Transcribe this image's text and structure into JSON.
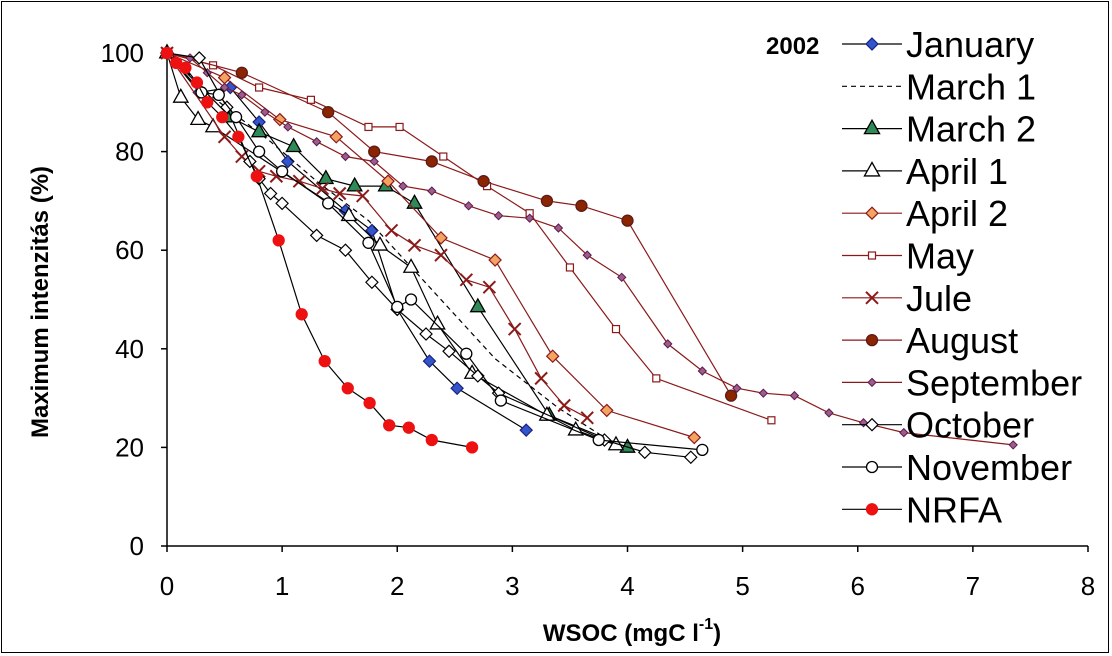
{
  "chart_data": {
    "type": "line",
    "year_label": "2002",
    "xlabel": "WSOC (mgC l",
    "xlabel_sup": "-1",
    "xlabel_close": ")",
    "ylabel": "Maximum intenzitás (%)",
    "xlim": [
      0,
      8
    ],
    "ylim": [
      0,
      100
    ],
    "x_ticks": [
      "0",
      "1",
      "2",
      "3",
      "4",
      "5",
      "6",
      "7",
      "8"
    ],
    "y_ticks": [
      "0",
      "20",
      "40",
      "60",
      "80",
      "100"
    ],
    "grid": false,
    "legend_position": "right",
    "series": [
      {
        "name": "January",
        "color": "#000000",
        "marker": "diamond",
        "marker_fill": "#3355cc",
        "marker_stroke": "#1a237e",
        "dash": false,
        "x": [
          0.0,
          0.28,
          0.55,
          0.8,
          1.05,
          1.55,
          1.78,
          2.0,
          2.28,
          2.52,
          3.12
        ],
        "y": [
          100,
          92,
          93,
          86,
          78,
          68,
          64,
          48,
          37.5,
          32,
          23.5
        ]
      },
      {
        "name": "March 1",
        "color": "#000000",
        "marker": "none",
        "dash": true,
        "x": [
          0.0,
          0.4,
          0.9,
          1.3,
          1.75,
          2.3,
          2.85,
          3.4,
          3.8
        ],
        "y": [
          100,
          91,
          82,
          74,
          66,
          52,
          38,
          28,
          22
        ]
      },
      {
        "name": "March 2",
        "color": "#000000",
        "marker": "triangle",
        "marker_fill": "#2e8b57",
        "marker_stroke": "#000000",
        "dash": false,
        "x": [
          0.0,
          0.55,
          0.8,
          1.1,
          1.38,
          1.63,
          1.9,
          2.15,
          2.7,
          3.32,
          4.0
        ],
        "y": [
          100,
          87,
          84,
          81,
          74.5,
          73,
          73,
          69.5,
          48.5,
          26.5,
          20
        ]
      },
      {
        "name": "April 1",
        "color": "#000000",
        "marker": "triangle",
        "marker_fill": "#ffffff",
        "marker_stroke": "#000000",
        "dash": false,
        "x": [
          0.0,
          0.12,
          0.27,
          0.4,
          1.58,
          1.85,
          2.12,
          2.35,
          2.65,
          3.3,
          3.55,
          3.9
        ],
        "y": [
          100,
          91,
          86.5,
          85,
          67,
          61,
          56.5,
          45,
          35,
          26.5,
          23.5,
          20.5
        ]
      },
      {
        "name": "April 2",
        "color": "#8b1a1a",
        "marker": "diamond",
        "marker_fill": "#f4a460",
        "marker_stroke": "#8b1a1a",
        "dash": false,
        "x": [
          0.0,
          0.5,
          0.98,
          1.47,
          1.92,
          2.38,
          2.85,
          3.35,
          3.82,
          4.58
        ],
        "y": [
          100,
          95,
          86.5,
          83,
          74,
          62.5,
          58,
          38.5,
          27.5,
          22
        ]
      },
      {
        "name": "May",
        "color": "#8b1a1a",
        "marker": "square",
        "marker_fill": "#ffffff",
        "marker_stroke": "#8b1a1a",
        "dash": false,
        "x": [
          0.0,
          0.4,
          0.8,
          1.25,
          1.75,
          2.02,
          2.4,
          2.78,
          3.15,
          3.5,
          3.9,
          4.25,
          5.25
        ],
        "y": [
          100,
          97.5,
          93,
          90.5,
          85,
          85,
          79,
          73,
          67.5,
          56.5,
          44,
          34,
          25.5
        ]
      },
      {
        "name": "Jule",
        "color": "#8b1a1a",
        "marker": "x",
        "marker_fill": "#8b1a1a",
        "marker_stroke": "#8b1a1a",
        "dash": false,
        "x": [
          0.0,
          0.5,
          0.65,
          0.8,
          0.95,
          1.15,
          1.35,
          1.5,
          1.7,
          1.95,
          2.15,
          2.38,
          2.6,
          2.8,
          3.02,
          3.25,
          3.45,
          3.65
        ],
        "y": [
          100,
          83,
          79,
          76,
          75,
          74,
          72.5,
          71.5,
          71,
          64,
          61,
          59,
          54,
          52.5,
          44,
          34,
          28.5,
          26
        ]
      },
      {
        "name": "August",
        "color": "#8b1a1a",
        "marker": "circle",
        "marker_fill": "#8b2500",
        "marker_stroke": "#5c1a1a",
        "dash": false,
        "x": [
          0.0,
          0.65,
          1.4,
          1.8,
          2.3,
          2.75,
          3.3,
          3.6,
          4.0,
          4.9
        ],
        "y": [
          100,
          96,
          88,
          80,
          78,
          74,
          70,
          69,
          66,
          30.5
        ]
      },
      {
        "name": "September",
        "color": "#8b1a1a",
        "marker": "diamond_small",
        "marker_fill": "#9c5c8c",
        "marker_stroke": "#5c1a4a",
        "dash": false,
        "x": [
          0.0,
          0.2,
          0.35,
          0.5,
          0.65,
          0.85,
          1.05,
          1.3,
          1.55,
          1.8,
          2.05,
          2.3,
          2.62,
          2.88,
          3.15,
          3.4,
          3.65,
          3.95,
          4.35,
          4.65,
          4.95,
          5.18,
          5.45,
          5.75,
          6.05,
          6.4,
          7.35
        ],
        "y": [
          100,
          99,
          96,
          93,
          91.5,
          88,
          85,
          82,
          79,
          78,
          73,
          72,
          69,
          67,
          66.5,
          64.5,
          59,
          54.5,
          41,
          35.5,
          32,
          31,
          30.5,
          27,
          25,
          23,
          20.5
        ]
      },
      {
        "name": "October",
        "color": "#000000",
        "marker": "diamond",
        "marker_fill": "#ffffff",
        "marker_stroke": "#000000",
        "dash": false,
        "x": [
          0.0,
          0.28,
          0.52,
          0.72,
          0.8,
          0.9,
          1.0,
          1.3,
          1.55,
          1.78,
          2.0,
          2.25,
          2.45,
          2.7,
          2.88,
          3.8,
          4.15,
          4.55
        ],
        "y": [
          100,
          99,
          89,
          78,
          74.5,
          71.5,
          69.5,
          63,
          60,
          53.5,
          48,
          43,
          39.5,
          34.5,
          31,
          21.5,
          19,
          18
        ]
      },
      {
        "name": "November",
        "color": "#000000",
        "marker": "circle",
        "marker_fill": "#ffffff",
        "marker_stroke": "#000000",
        "dash": false,
        "x": [
          0.0,
          0.3,
          0.45,
          0.6,
          0.8,
          1.0,
          1.4,
          1.75,
          2.0,
          2.12,
          2.6,
          2.9,
          3.75,
          4.65
        ],
        "y": [
          100,
          92,
          91.5,
          87,
          80,
          76,
          69.5,
          61.5,
          48.5,
          50,
          39,
          29.5,
          21.5,
          19.5
        ]
      },
      {
        "name": "NRFA",
        "color": "#000000",
        "marker": "circle",
        "marker_fill": "#ee1111",
        "marker_stroke": "#ee1111",
        "dash": false,
        "label_color": "#ee1111",
        "x": [
          0.0,
          0.08,
          0.16,
          0.26,
          0.35,
          0.48,
          0.62,
          0.78,
          0.97,
          1.17,
          1.37,
          1.57,
          1.76,
          1.93,
          2.1,
          2.3,
          2.65
        ],
        "y": [
          100,
          98,
          97,
          94,
          90,
          87,
          83,
          75,
          62,
          47,
          37.5,
          32,
          29,
          24.5,
          24,
          21.5,
          20
        ]
      }
    ]
  }
}
